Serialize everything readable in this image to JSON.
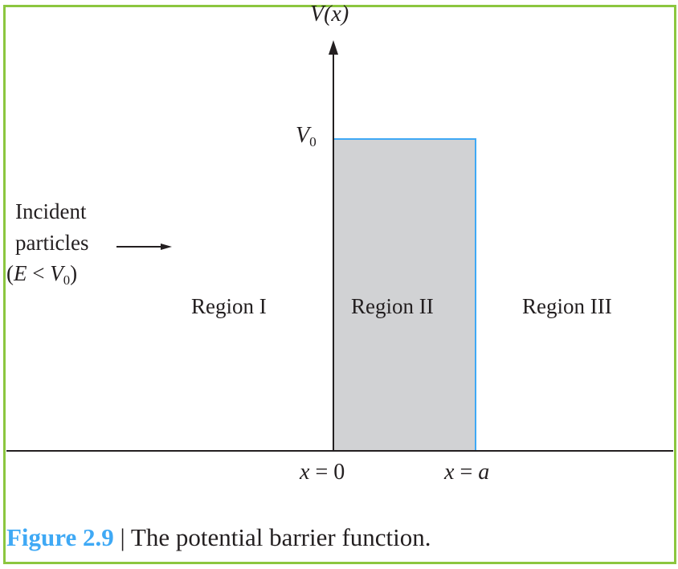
{
  "diagram": {
    "y_axis_label": "V(x)",
    "barrier_height_label": "V0",
    "incident": {
      "line1": "Incident",
      "line2": "particles",
      "condition": "E < V0"
    },
    "regions": [
      "Region I",
      "Region II",
      "Region III"
    ],
    "x_marks": [
      "x = 0",
      "x = a"
    ],
    "barrier_fill": "#d1d2d4",
    "barrier_edge": "#3fa9f5",
    "axis_color": "#231f20"
  },
  "caption": {
    "number": "Figure 2.9",
    "separator": "|",
    "text": "The potential barrier function."
  },
  "frame_color": "#8cc63f"
}
